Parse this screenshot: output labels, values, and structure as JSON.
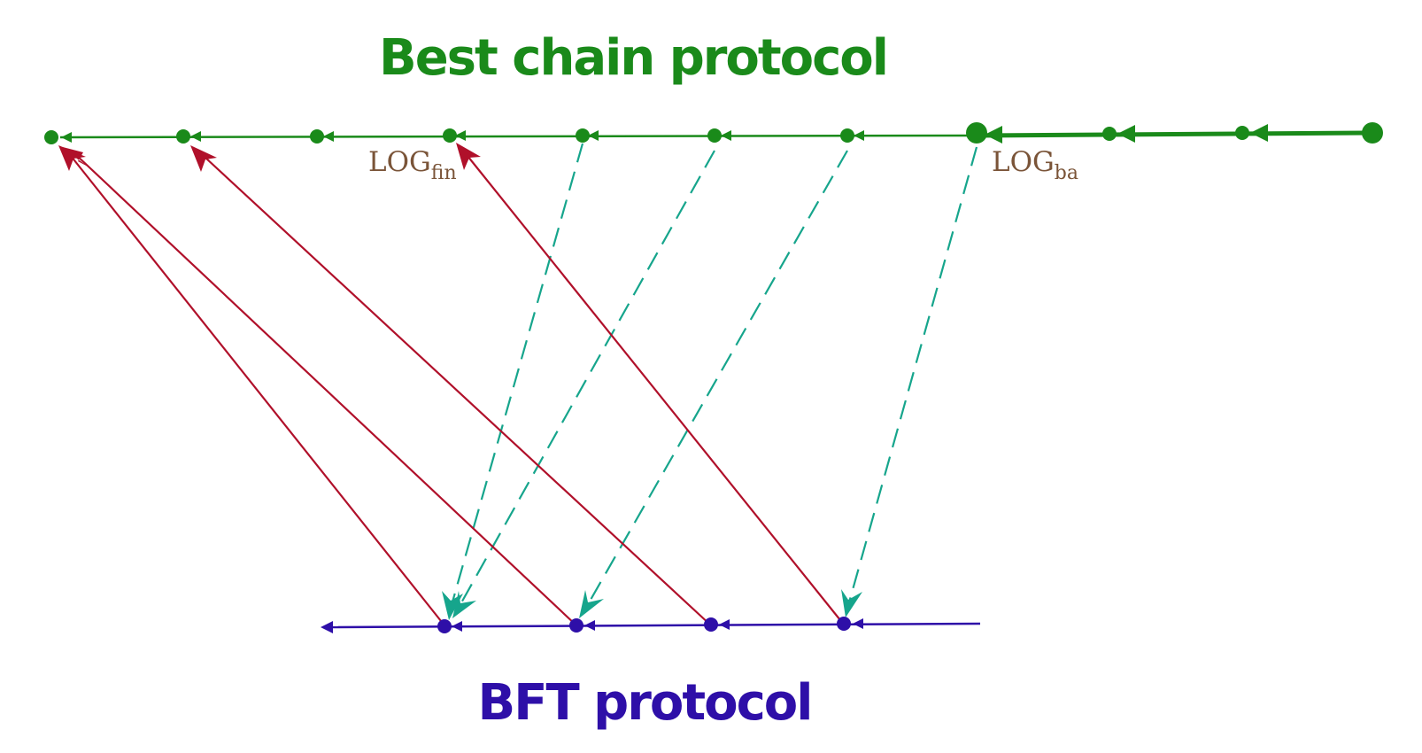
{
  "titles": {
    "best_chain": "Best chain protocol",
    "bft": "BFT protocol"
  },
  "labels": {
    "log_fin_main": "LOG",
    "log_fin_sub": "fin",
    "log_ba_main": "LOG",
    "log_ba_sub": "ba"
  },
  "colors": {
    "best_chain": "#1a8a1a",
    "bft": "#2e0fa8",
    "finalization_arrow": "#b0102a",
    "snapshot_arrow": "#16a58c",
    "log_label": "#7a5438"
  }
}
